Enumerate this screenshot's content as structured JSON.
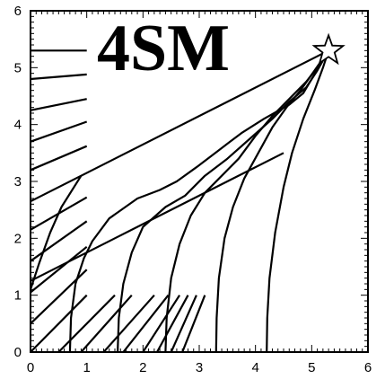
{
  "title": "4SM",
  "chart_data": {
    "type": "diagram",
    "title": "4SM",
    "xlim": [
      0,
      6
    ],
    "ylim": [
      0,
      6
    ],
    "x_ticks": [
      0,
      1,
      2,
      3,
      4,
      5,
      6
    ],
    "y_ticks": [
      0,
      1,
      2,
      3,
      4,
      5,
      6
    ],
    "x_tick_labels": [
      "0",
      "1",
      "2",
      "3",
      "4",
      "5",
      "6"
    ],
    "y_tick_labels": [
      "0",
      "1",
      "2",
      "3",
      "4",
      "5",
      "6"
    ],
    "minor_tick_step": 0.1,
    "grid": false,
    "star_marker": {
      "x": 5.3,
      "y": 5.3
    },
    "ray_lines": [
      {
        "x": [
          0,
          5.3
        ],
        "y": [
          2.65,
          5.3
        ]
      },
      {
        "x": [
          0,
          4.5
        ],
        "y": [
          1.25,
          3.5
        ]
      }
    ],
    "curves": [
      {
        "x": [
          0.7,
          0.72,
          0.8,
          0.95,
          1.1,
          1.4,
          1.9,
          2.3,
          2.6,
          2.95,
          3.35,
          3.75,
          4.15,
          4.6,
          4.85,
          5.0,
          5.3
        ],
        "y": [
          0,
          0.6,
          1.2,
          1.65,
          1.95,
          2.35,
          2.7,
          2.85,
          3.0,
          3.25,
          3.55,
          3.85,
          4.1,
          4.35,
          4.55,
          4.8,
          5.3
        ]
      },
      {
        "x": [
          1.55,
          1.57,
          1.65,
          1.8,
          2.0,
          2.4,
          2.75,
          3.1,
          3.5,
          3.9,
          4.3,
          4.6,
          4.9,
          5.1,
          5.3
        ],
        "y": [
          0,
          0.6,
          1.2,
          1.75,
          2.2,
          2.55,
          2.75,
          3.1,
          3.4,
          3.75,
          4.1,
          4.4,
          4.65,
          4.95,
          5.3
        ]
      },
      {
        "x": [
          2.4,
          2.42,
          2.5,
          2.65,
          2.85,
          3.1,
          3.4,
          3.7,
          4.0,
          4.3,
          4.6,
          4.9,
          5.1,
          5.3
        ],
        "y": [
          0,
          0.6,
          1.3,
          1.9,
          2.4,
          2.8,
          3.1,
          3.4,
          3.8,
          4.15,
          4.45,
          4.75,
          5.0,
          5.3
        ]
      },
      {
        "x": [
          3.3,
          3.31,
          3.35,
          3.45,
          3.6,
          3.8,
          4.05,
          4.3,
          4.55,
          4.8,
          5.05,
          5.3
        ],
        "y": [
          0,
          0.6,
          1.3,
          2.0,
          2.55,
          3.05,
          3.5,
          3.95,
          4.3,
          4.6,
          4.95,
          5.3
        ]
      },
      {
        "x": [
          4.2,
          4.21,
          4.25,
          4.35,
          4.5,
          4.65,
          4.85,
          5.05,
          5.2,
          5.3
        ],
        "y": [
          0,
          0.6,
          1.3,
          2.1,
          2.9,
          3.5,
          4.1,
          4.6,
          5.0,
          5.3
        ]
      },
      {
        "x": [
          0,
          0.15,
          0.35,
          0.55,
          0.9
        ],
        "y": [
          1.1,
          1.55,
          2.1,
          2.55,
          3.1
        ]
      }
    ],
    "hatch_lines": [
      {
        "x": [
          0,
          1.0
        ],
        "y": [
          5.3,
          5.3
        ]
      },
      {
        "x": [
          0,
          1.0
        ],
        "y": [
          4.8,
          4.88
        ]
      },
      {
        "x": [
          0,
          1.0
        ],
        "y": [
          4.25,
          4.45
        ]
      },
      {
        "x": [
          0,
          1.0
        ],
        "y": [
          3.7,
          4.05
        ]
      },
      {
        "x": [
          0,
          1.0
        ],
        "y": [
          3.2,
          3.62
        ]
      },
      {
        "x": [
          0,
          1.0
        ],
        "y": [
          2.15,
          2.72
        ]
      },
      {
        "x": [
          0,
          1.0
        ],
        "y": [
          1.6,
          2.3
        ]
      },
      {
        "x": [
          0,
          1.0
        ],
        "y": [
          1.05,
          1.85
        ]
      },
      {
        "x": [
          0,
          1.0
        ],
        "y": [
          0.5,
          1.45
        ]
      },
      {
        "x": [
          0,
          1.0
        ],
        "y": [
          0,
          1.0
        ]
      },
      {
        "x": [
          0.5,
          1.5
        ],
        "y": [
          0,
          1.0
        ]
      },
      {
        "x": [
          0.9,
          1.8
        ],
        "y": [
          0,
          1.0
        ]
      },
      {
        "x": [
          1.3,
          2.2
        ],
        "y": [
          0,
          1.0
        ]
      },
      {
        "x": [
          1.65,
          2.45
        ],
        "y": [
          0,
          1.0
        ]
      },
      {
        "x": [
          2.0,
          2.65
        ],
        "y": [
          0,
          1.0
        ]
      },
      {
        "x": [
          2.25,
          2.8
        ],
        "y": [
          0,
          1.0
        ]
      },
      {
        "x": [
          2.5,
          2.95
        ],
        "y": [
          0,
          1.0
        ]
      },
      {
        "x": [
          2.7,
          3.1
        ],
        "y": [
          0,
          1.0
        ]
      }
    ]
  }
}
